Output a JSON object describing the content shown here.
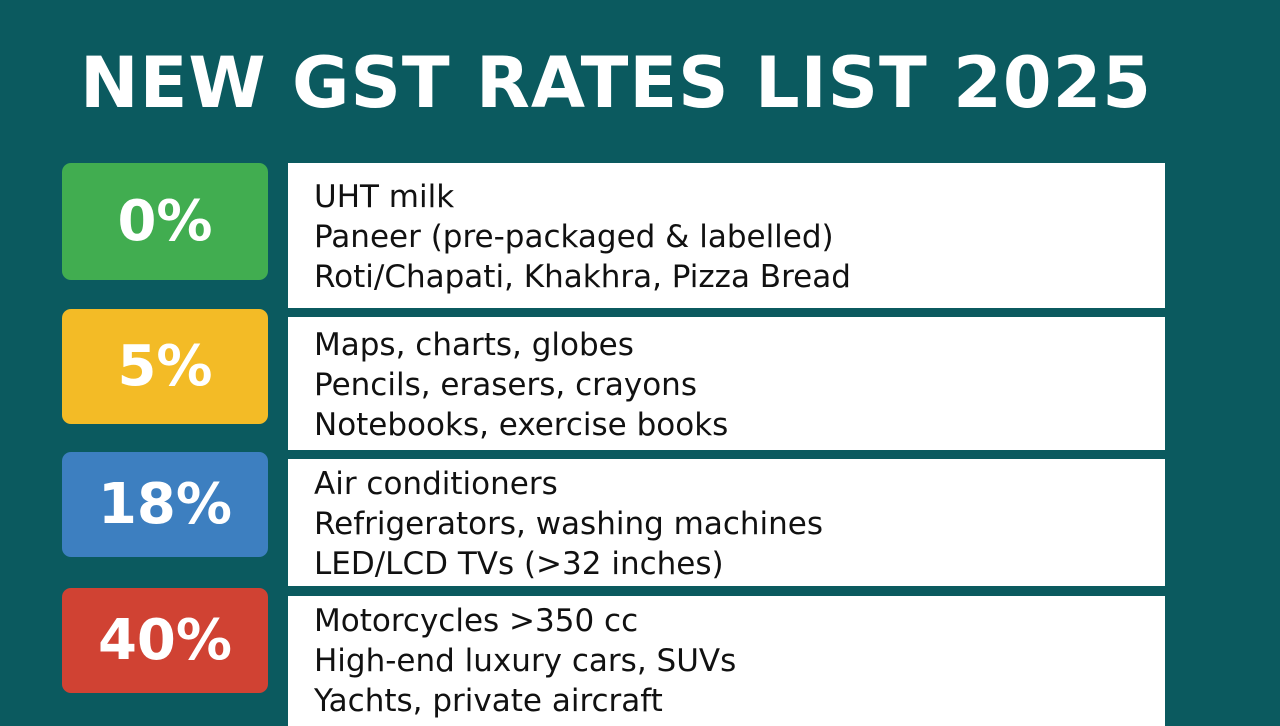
{
  "title": "NEW GST RATES LIST 2025",
  "tiers": [
    {
      "rate": "0%",
      "color": "#41ad50",
      "items": [
        "UHT milk",
        "Paneer (pre-packaged & labelled)",
        "Roti/Chapati, Khakhra, Pizza Bread"
      ]
    },
    {
      "rate": "5%",
      "color": "#f3bb26",
      "items": [
        "Maps, charts, globes",
        "Pencils, erasers, crayons",
        "Notebooks, exercise books"
      ]
    },
    {
      "rate": "18%",
      "color": "#3d7fc0",
      "items": [
        "Air conditioners",
        "Refrigerators, washing machines",
        "LED/LCD TVs (>32 inches)"
      ]
    },
    {
      "rate": "40%",
      "color": "#d04233",
      "items": [
        "Motorcycles >350 cc",
        "High-end luxury cars, SUVs",
        "Yachts, private aircraft"
      ]
    }
  ]
}
